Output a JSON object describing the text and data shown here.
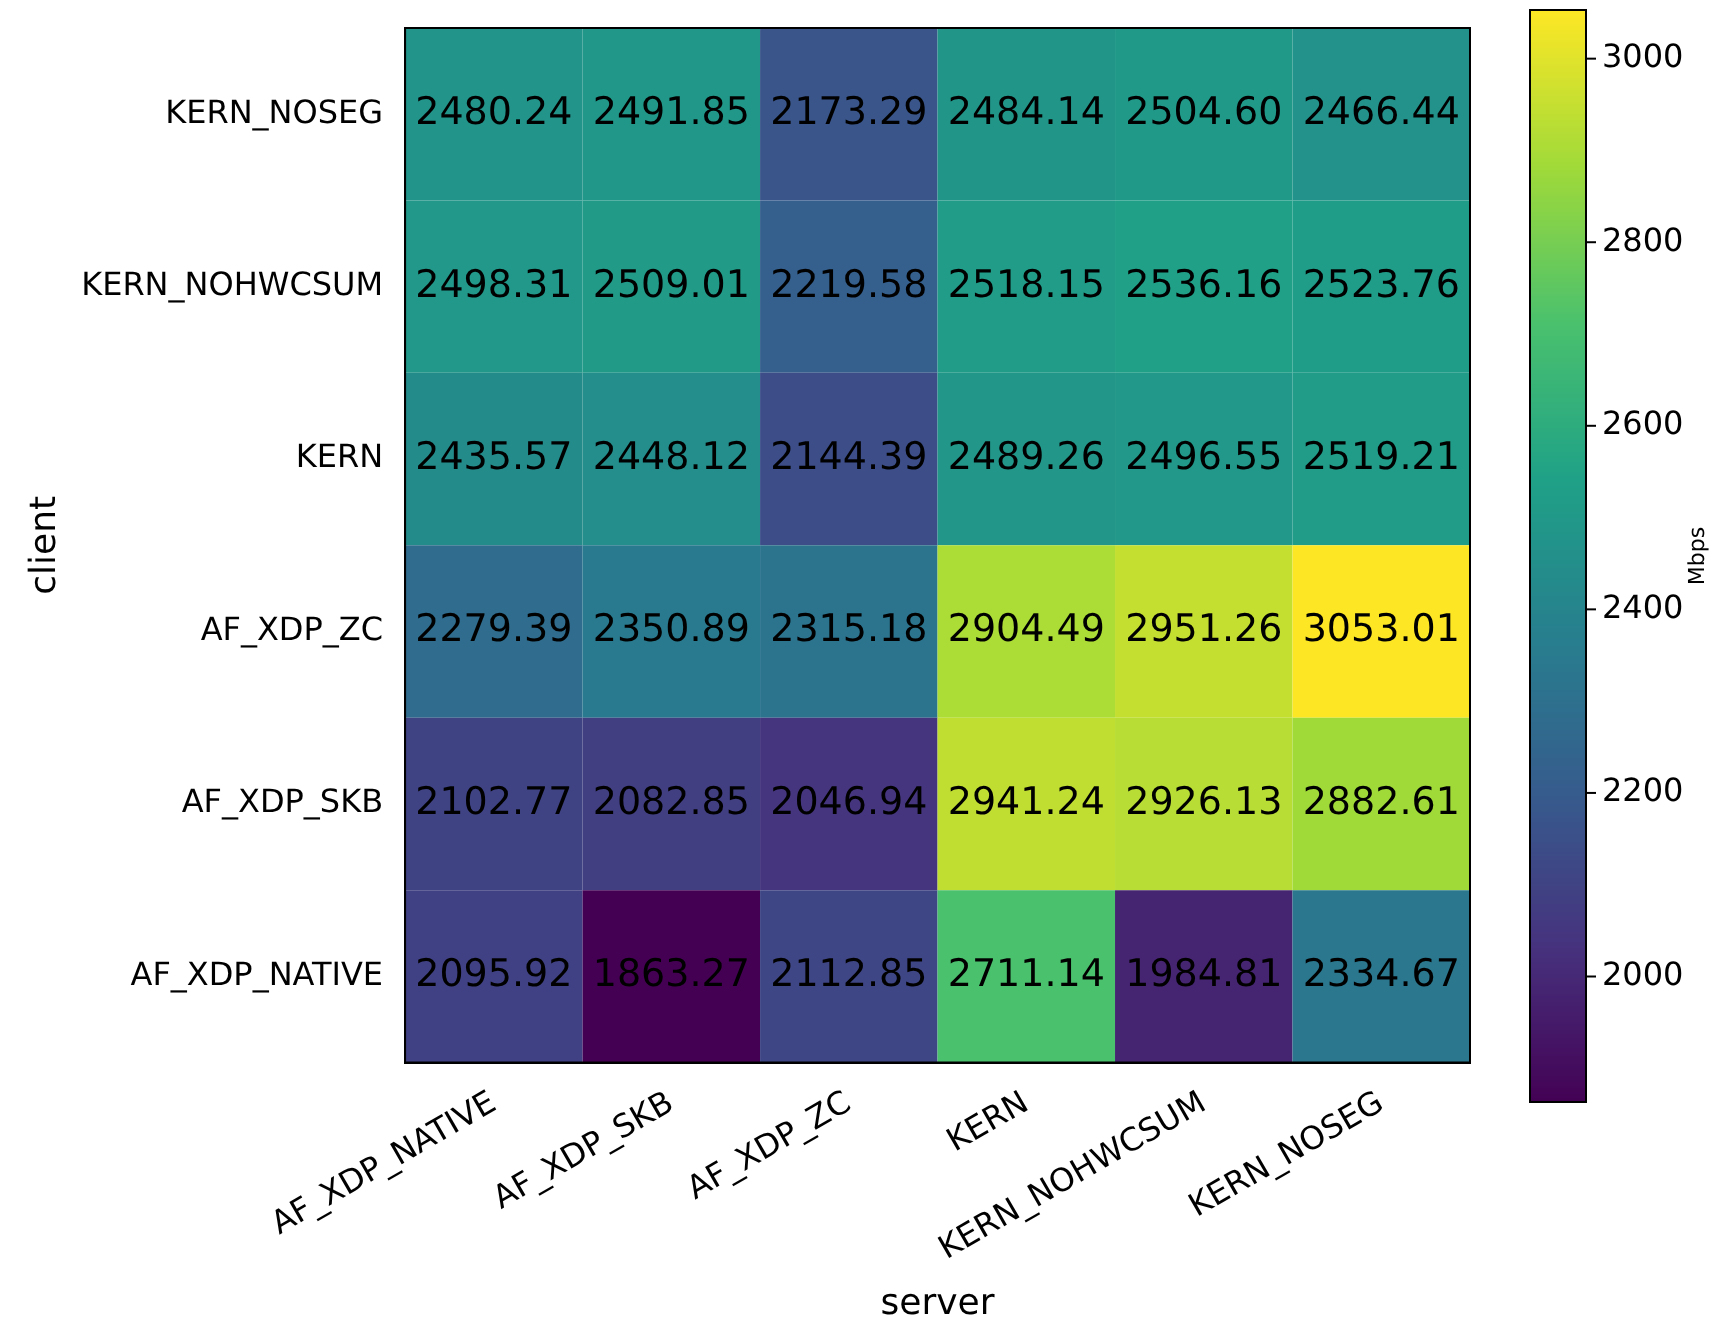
{
  "chart_data": {
    "type": "heatmap",
    "xlabel": "server",
    "ylabel": "client",
    "clabel": "Mbps",
    "categories": [
      "AF_XDP_NATIVE",
      "AF_XDP_SKB",
      "AF_XDP_ZC",
      "KERN",
      "KERN_NOHWCSUM",
      "KERN_NOSEG"
    ],
    "y_categories": [
      "KERN_NOSEG",
      "KERN_NOHWCSUM",
      "KERN",
      "AF_XDP_ZC",
      "AF_XDP_SKB",
      "AF_XDP_NATIVE"
    ],
    "cells": [
      [
        2480.24,
        2491.85,
        2173.29,
        2484.14,
        2504.6,
        2466.44
      ],
      [
        2498.31,
        2509.01,
        2219.58,
        2518.15,
        2536.16,
        2523.76
      ],
      [
        2435.57,
        2448.12,
        2144.39,
        2489.26,
        2496.55,
        2519.21
      ],
      [
        2279.39,
        2350.89,
        2315.18,
        2904.49,
        2951.26,
        3053.01
      ],
      [
        2102.77,
        2082.85,
        2046.94,
        2941.24,
        2926.13,
        2882.61
      ],
      [
        2095.92,
        1863.27,
        2112.85,
        2711.14,
        1984.81,
        2334.67
      ]
    ],
    "cell_labels": [
      [
        "2480.24",
        "2491.85",
        "2173.29",
        "2484.14",
        "2504.60",
        "2466.44"
      ],
      [
        "2498.31",
        "2509.01",
        "2219.58",
        "2518.15",
        "2536.16",
        "2523.76"
      ],
      [
        "2435.57",
        "2448.12",
        "2144.39",
        "2489.26",
        "2496.55",
        "2519.21"
      ],
      [
        "2279.39",
        "2350.89",
        "2315.18",
        "2904.49",
        "2951.26",
        "3053.01"
      ],
      [
        "2102.77",
        "2082.85",
        "2046.94",
        "2941.24",
        "2926.13",
        "2882.61"
      ],
      [
        "2095.92",
        "1863.27",
        "2112.85",
        "2711.14",
        "1984.81",
        "2334.67"
      ]
    ],
    "data_labels": true,
    "clim": [
      1863.27,
      3053.01
    ],
    "cticks": [
      2000,
      2200,
      2400,
      2600,
      2800,
      3000
    ]
  }
}
